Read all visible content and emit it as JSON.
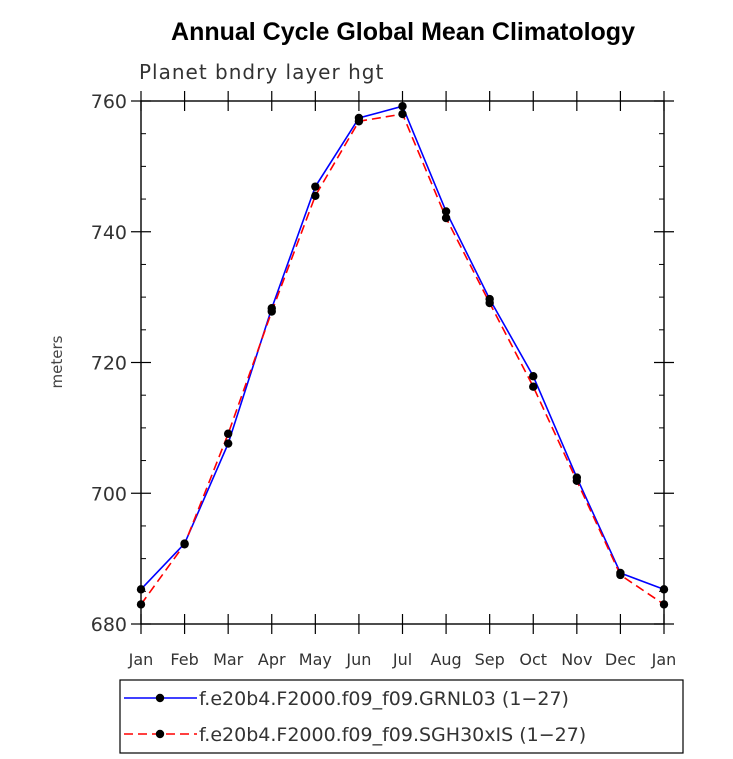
{
  "chart_data": {
    "type": "line",
    "title": "Annual Cycle Global Mean Climatology",
    "subtitle": "Planet bndry layer hgt",
    "xlabel": "",
    "ylabel": "meters",
    "categories": [
      "Jan",
      "Feb",
      "Mar",
      "Apr",
      "May",
      "Jun",
      "Jul",
      "Aug",
      "Sep",
      "Oct",
      "Nov",
      "Dec",
      "Jan"
    ],
    "ylim": [
      680,
      760
    ],
    "yticks": [
      680,
      700,
      720,
      740,
      760
    ],
    "series": [
      {
        "name": "f.e20b4.F2000.f09_f09.GRNL03 (1−27)",
        "color": "#0000ff",
        "dash": "solid",
        "marker": "filled-circle",
        "values": [
          685.3,
          692.3,
          707.6,
          728.3,
          746.9,
          757.4,
          759.2,
          743.1,
          729.7,
          717.9,
          702.4,
          687.8,
          685.3
        ]
      },
      {
        "name": "f.e20b4.F2000.f09_f09.SGH30xIS (1−27)",
        "color": "#ff0000",
        "dash": "dashed",
        "marker": "filled-circle",
        "values": [
          683.0,
          692.2,
          709.1,
          727.8,
          745.5,
          756.9,
          758.0,
          742.1,
          729.1,
          716.3,
          701.9,
          687.5,
          683.0
        ]
      }
    ],
    "legend_position": "bottom"
  }
}
